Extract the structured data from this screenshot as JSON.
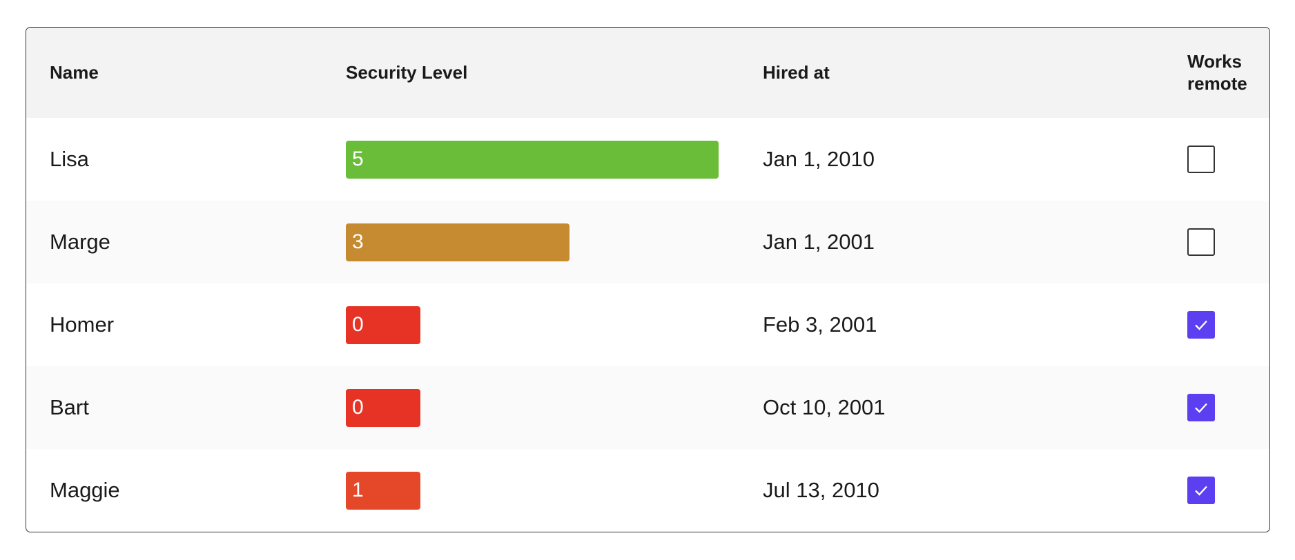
{
  "table": {
    "headers": [
      "Name",
      "Security Level",
      "Hired at",
      "Works remote"
    ],
    "rows": [
      {
        "name": "Lisa",
        "security_level": 5,
        "color": "#6abd39",
        "hired_at": "Jan 1, 2010",
        "works_remote": false
      },
      {
        "name": "Marge",
        "security_level": 3,
        "color": "#c68a30",
        "hired_at": "Jan 1, 2001",
        "works_remote": false
      },
      {
        "name": "Homer",
        "security_level": 0,
        "color": "#e63325",
        "hired_at": "Feb 3, 2001",
        "works_remote": true
      },
      {
        "name": "Bart",
        "security_level": 0,
        "color": "#e63325",
        "hired_at": "Oct 10, 2001",
        "works_remote": true
      },
      {
        "name": "Maggie",
        "security_level": 1,
        "color": "#e54828",
        "hired_at": "Jul 13, 2010",
        "works_remote": true
      }
    ]
  }
}
